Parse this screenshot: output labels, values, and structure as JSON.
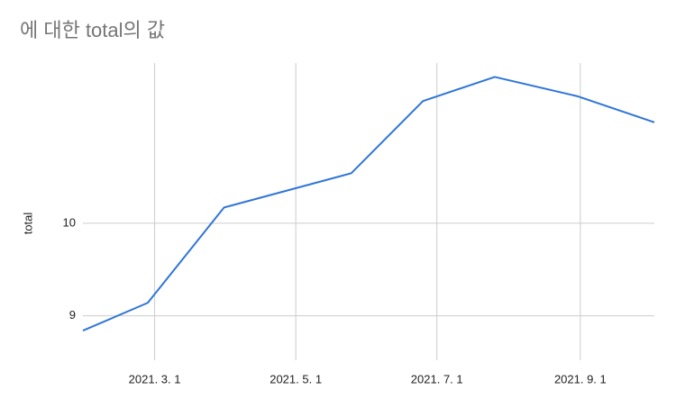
{
  "chart_data": {
    "type": "line",
    "title": "에 대한 total의 값",
    "y_label": "total",
    "x": [
      "2021-01-29",
      "2021-02-26",
      "2021-03-31",
      "2021-05-25",
      "2021-06-25",
      "2021-07-26",
      "2021-08-31",
      "2021-10-03"
    ],
    "series": [
      {
        "name": "total",
        "color": "#2f75d8",
        "values": [
          8.84,
          9.14,
          10.17,
          10.54,
          11.32,
          11.58,
          11.37,
          11.09
        ]
      }
    ],
    "xlim": [
      "2021-01-29",
      "2021-10-03"
    ],
    "xticks": [
      {
        "value": "2021-03-01",
        "label": "2021. 3. 1"
      },
      {
        "value": "2021-05-01",
        "label": "2021. 5. 1"
      },
      {
        "value": "2021-07-01",
        "label": "2021. 7. 1"
      },
      {
        "value": "2021-09-01",
        "label": "2021. 9. 1"
      }
    ],
    "ylim": [
      8.52,
      11.73
    ],
    "yticks": [
      9,
      10
    ],
    "grid": true
  }
}
